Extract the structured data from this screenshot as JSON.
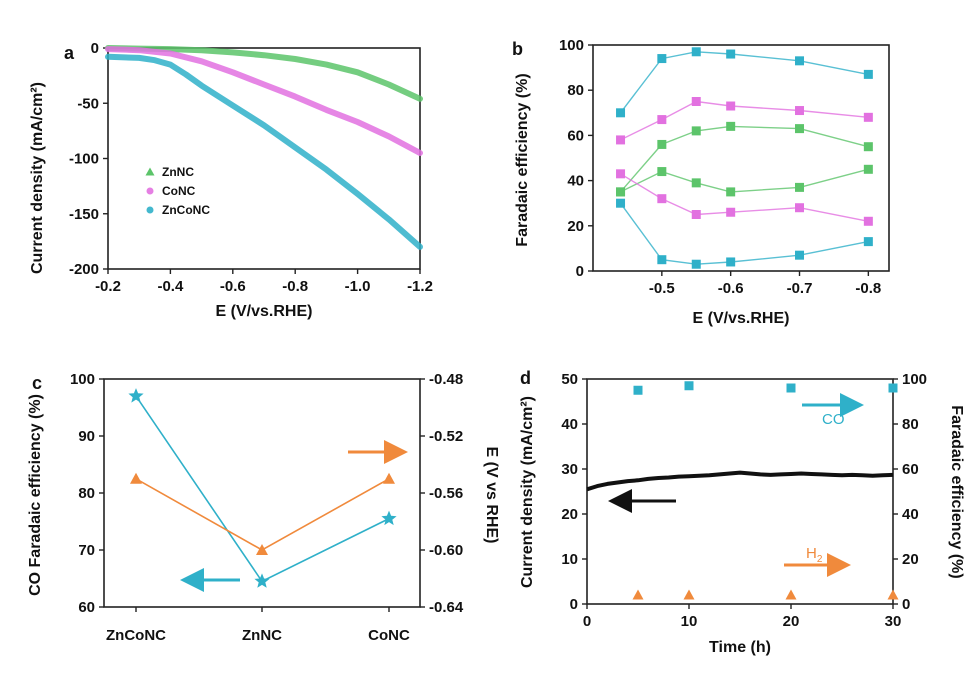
{
  "figure": {
    "panels": [
      "a",
      "b",
      "c",
      "d"
    ]
  },
  "colors": {
    "ZnNC": "#5cc46a",
    "CoNC": "#e271e0",
    "ZnCoNC": "#2fb0c9",
    "orange": "#f08a3c",
    "black": "#111111"
  },
  "chart_data": [
    {
      "panel": "a",
      "type": "line",
      "xlabel": "E (V/vs.RHE)",
      "ylabel": "Current density (mA/cm²)",
      "xlim": [
        -0.2,
        -1.2
      ],
      "ylim": [
        -200,
        0
      ],
      "xticks": [
        "-0.2",
        "-0.4",
        "-0.6",
        "-0.8",
        "-1.0",
        "-1.2"
      ],
      "yticks": [
        "0",
        "-50",
        "-100",
        "-150",
        "-200"
      ],
      "legend": {
        "position": "left-middle",
        "entries": [
          "ZnNC",
          "CoNC",
          "ZnCoNC"
        ]
      },
      "series": [
        {
          "name": "ZnNC",
          "x": [
            -0.2,
            -0.3,
            -0.4,
            -0.5,
            -0.6,
            -0.7,
            -0.8,
            -0.9,
            -1.0,
            -1.1,
            -1.2
          ],
          "values": [
            0,
            -0.5,
            -1,
            -2,
            -4,
            -6.5,
            -10,
            -15,
            -22,
            -33,
            -46
          ]
        },
        {
          "name": "CoNC",
          "x": [
            -0.2,
            -0.3,
            -0.4,
            -0.5,
            -0.6,
            -0.7,
            -0.8,
            -0.9,
            -1.0,
            -1.1,
            -1.2
          ],
          "values": [
            -1,
            -2,
            -5,
            -12,
            -22,
            -33,
            -44,
            -56,
            -67,
            -80,
            -95
          ]
        },
        {
          "name": "ZnCoNC",
          "x": [
            -0.2,
            -0.3,
            -0.35,
            -0.4,
            -0.45,
            -0.5,
            -0.6,
            -0.7,
            -0.8,
            -0.9,
            -1.0,
            -1.1,
            -1.2
          ],
          "values": [
            -8,
            -9,
            -11,
            -15,
            -24,
            -34,
            -52,
            -70,
            -90,
            -110,
            -132,
            -155,
            -180
          ]
        }
      ]
    },
    {
      "panel": "b",
      "type": "scatter",
      "xlabel": "E (V/vs.RHE)",
      "ylabel": "Faradaic efficiency (%)",
      "xlim": [
        -0.4,
        -0.83
      ],
      "ylim": [
        0,
        100
      ],
      "xticks": [
        "-0.5",
        "-0.6",
        "-0.7",
        "-0.8"
      ],
      "yticks": [
        "0",
        "20",
        "40",
        "60",
        "80",
        "100"
      ],
      "x": [
        -0.44,
        -0.5,
        -0.55,
        -0.6,
        -0.7,
        -0.8
      ],
      "series": [
        {
          "color": "#2fb0c9",
          "values": [
            70,
            94,
            97,
            96,
            93,
            87
          ]
        },
        {
          "color": "#e271e0",
          "values": [
            58,
            67,
            75,
            73,
            71,
            68
          ]
        },
        {
          "color": "#5cc46a",
          "values": [
            35,
            56,
            62,
            64,
            63,
            55
          ]
        },
        {
          "color": "#5cc46a",
          "values": [
            35,
            44,
            39,
            35,
            37,
            45
          ]
        },
        {
          "color": "#e271e0",
          "values": [
            43,
            32,
            25,
            26,
            28,
            22
          ]
        },
        {
          "color": "#2fb0c9",
          "values": [
            30,
            5,
            3,
            4,
            7,
            13
          ]
        }
      ]
    },
    {
      "panel": "c",
      "type": "line",
      "categories": [
        "ZnCoNC",
        "ZnNC",
        "CoNC"
      ],
      "ylabel": "CO Faradaic efficiency (%)",
      "y2label": "E (V vs RHE)",
      "ylim": [
        60,
        100
      ],
      "y2lim": [
        -0.64,
        -0.48
      ],
      "yticks": [
        "60",
        "70",
        "80",
        "90",
        "100"
      ],
      "y2ticks": [
        "-0.48",
        "-0.52",
        "-0.56",
        "-0.60",
        "-0.64"
      ],
      "series": [
        {
          "axis": "left",
          "marker": "star",
          "color": "#2fb0c9",
          "values": [
            97,
            64.5,
            75.5
          ]
        },
        {
          "axis": "right",
          "marker": "triangle",
          "color": "#f08a3c",
          "values": [
            -0.55,
            -0.6,
            -0.55
          ]
        }
      ]
    },
    {
      "panel": "d",
      "type": "line",
      "xlabel": "Time (h)",
      "ylabel": "Current density (mA/cm²)",
      "y2label": "Faradaic efficiency (%)",
      "xlim": [
        0,
        30
      ],
      "ylim": [
        0,
        50
      ],
      "y2lim": [
        0,
        100
      ],
      "xticks": [
        "0",
        "10",
        "20",
        "30"
      ],
      "yticks": [
        "0",
        "10",
        "20",
        "30",
        "40",
        "50"
      ],
      "y2ticks": [
        "0",
        "20",
        "40",
        "60",
        "80",
        "100"
      ],
      "annotations": {
        "co": "CO",
        "h2_main": "H",
        "h2_sub": "2"
      },
      "series": [
        {
          "axis": "left",
          "color": "#111111",
          "x": [
            0,
            1,
            2,
            3,
            4,
            5,
            6,
            7,
            8,
            9,
            10,
            11,
            12,
            13,
            14,
            15,
            16,
            17,
            18,
            19,
            20,
            21,
            22,
            23,
            24,
            25,
            26,
            27,
            28,
            29,
            30
          ],
          "values": [
            25.5,
            26.2,
            26.7,
            27.0,
            27.3,
            27.5,
            27.8,
            28.0,
            28.1,
            28.3,
            28.4,
            28.5,
            28.6,
            28.8,
            29.0,
            29.2,
            29.0,
            28.8,
            28.7,
            28.8,
            28.9,
            29.0,
            28.9,
            28.8,
            28.7,
            28.6,
            28.7,
            28.6,
            28.5,
            28.6,
            28.7
          ]
        },
        {
          "axis": "right",
          "marker": "square",
          "color": "#2fb0c9",
          "x": [
            5,
            10,
            20,
            30
          ],
          "values": [
            95,
            97,
            96,
            96
          ]
        },
        {
          "axis": "right",
          "marker": "triangle",
          "color": "#f08a3c",
          "x": [
            5,
            10,
            20,
            30
          ],
          "values": [
            4,
            4,
            4,
            4
          ]
        }
      ]
    }
  ]
}
